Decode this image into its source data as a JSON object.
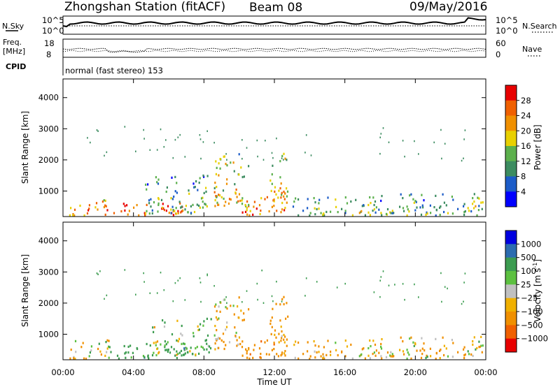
{
  "header": {
    "title": "Zhongshan Station (fitACF)",
    "beam": "Beam 08",
    "date": "09/May/2016"
  },
  "strip_nsky": {
    "left_label": "N.Sky",
    "right_label": "N.Search",
    "left_ticks": [
      "10^5",
      "10^0"
    ],
    "right_ticks": [
      "10^5",
      "10^0"
    ]
  },
  "strip_freq": {
    "left_label_1": "Freq.",
    "left_label_2": "[MHz]",
    "right_label": "Nave",
    "left_ticks": [
      "18",
      "8"
    ],
    "right_ticks": [
      "60",
      "0"
    ]
  },
  "cpid": {
    "label": "CPID",
    "text": "normal (fast stereo) 153"
  },
  "chart_data": [
    {
      "type": "heatmap",
      "quantity": "power",
      "ylabel": "Slant Range [km]",
      "xlabel": "Time UT",
      "xlim": [
        "00:00",
        "24:00"
      ],
      "ylim": [
        180,
        4600
      ],
      "y_ticks": [
        "4000",
        "3000",
        "2000",
        "1000"
      ],
      "x_ticks": [
        "00:00",
        "04:00",
        "08:00",
        "12:00",
        "16:00",
        "20:00",
        "00:00"
      ],
      "colorbar": {
        "label": "Power [dB]",
        "ticks": [
          "28",
          "24",
          "20",
          "16",
          "12",
          "8",
          "4"
        ],
        "range": [
          0,
          32
        ],
        "colors": [
          "#0000ff",
          "#1c5cc8",
          "#3c8c60",
          "#5cb04c",
          "#e8d000",
          "#f09000",
          "#f06000",
          "#e80000"
        ]
      },
      "clusters": [
        {
          "t": [
            0.1,
            2.4
          ],
          "r": [
            200,
            700
          ],
          "level": 0.75
        },
        {
          "t": [
            2.4,
            6.8
          ],
          "r": [
            200,
            600
          ],
          "level": 0.9
        },
        {
          "t": [
            4.6,
            8.2
          ],
          "r": [
            250,
            1500
          ],
          "level": 0.45
        },
        {
          "t": [
            8.5,
            10.5
          ],
          "r": [
            500,
            2200
          ],
          "level": 0.65
        },
        {
          "t": [
            10.0,
            12.8
          ],
          "r": [
            200,
            800
          ],
          "level": 0.8
        },
        {
          "t": [
            11.7,
            12.8
          ],
          "r": [
            700,
            2200
          ],
          "level": 0.7
        },
        {
          "t": [
            12.8,
            18.0
          ],
          "r": [
            200,
            800
          ],
          "level": 0.45
        },
        {
          "t": [
            18.0,
            23.3
          ],
          "r": [
            200,
            900
          ],
          "level": 0.4
        },
        {
          "t": [
            23.2,
            24.0
          ],
          "r": [
            200,
            1000
          ],
          "level": 0.5
        }
      ]
    },
    {
      "type": "heatmap",
      "quantity": "velocity",
      "ylabel": "Slant Range [km]",
      "xlabel": "Time UT",
      "xlim": [
        "00:00",
        "24:00"
      ],
      "ylim": [
        180,
        4600
      ],
      "y_ticks": [
        "4000",
        "3000",
        "2000",
        "1000"
      ],
      "x_ticks": [
        "00:00",
        "04:00",
        "08:00",
        "12:00",
        "16:00",
        "20:00",
        "00:00"
      ],
      "colorbar": {
        "label": "Velocity [m s^-1]",
        "ticks": [
          "1000",
          "500",
          "100",
          "25",
          "−25",
          "−100",
          "−500",
          "−1000"
        ],
        "range": [
          -1250,
          1250
        ],
        "colors": [
          "#e80000",
          "#f06000",
          "#f09000",
          "#f0b000",
          "#c0c0c0",
          "#5cc040",
          "#3c9c50",
          "#2c6cb0",
          "#0000e0"
        ]
      },
      "clusters": [
        {
          "t": [
            0.1,
            2.6
          ],
          "r": [
            200,
            800
          ],
          "v": -25
        },
        {
          "t": [
            2.6,
            7.0
          ],
          "r": [
            200,
            700
          ],
          "v": 300
        },
        {
          "t": [
            5.0,
            8.4
          ],
          "r": [
            300,
            1500
          ],
          "v": 100
        },
        {
          "t": [
            8.5,
            10.5
          ],
          "r": [
            500,
            2200
          ],
          "v": -150
        },
        {
          "t": [
            10.0,
            12.8
          ],
          "r": [
            200,
            800
          ],
          "v": -300
        },
        {
          "t": [
            11.7,
            12.8
          ],
          "r": [
            700,
            2200
          ],
          "v": -200
        },
        {
          "t": [
            12.8,
            18.0
          ],
          "r": [
            200,
            800
          ],
          "v": -150
        },
        {
          "t": [
            18.0,
            23.3
          ],
          "r": [
            200,
            900
          ],
          "v": -100
        },
        {
          "t": [
            23.2,
            24.0
          ],
          "r": [
            200,
            1000
          ],
          "v": -50
        }
      ]
    }
  ]
}
